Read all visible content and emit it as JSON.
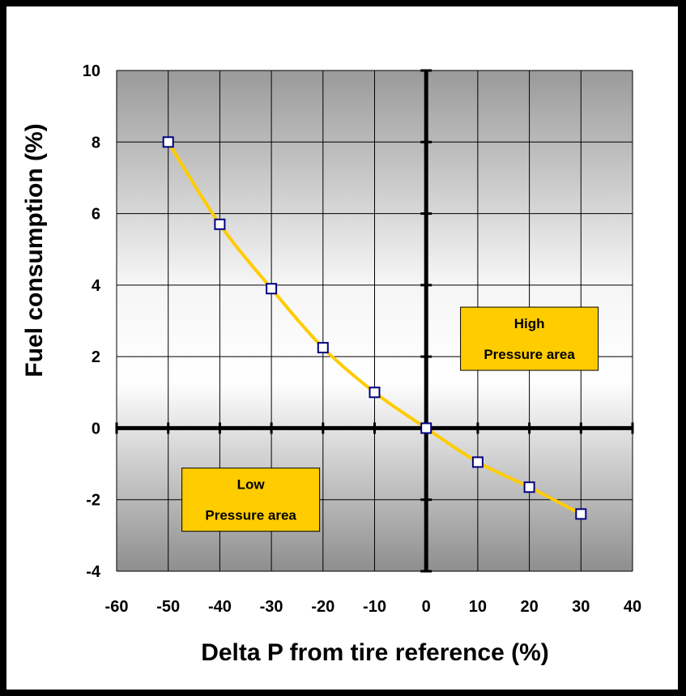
{
  "chart_data": {
    "type": "line",
    "xlabel": "Delta P from tire reference (%)",
    "ylabel": "Fuel consumption (%)",
    "xlim": [
      -60,
      40
    ],
    "ylim": [
      -4,
      10
    ],
    "x_ticks": [
      -60,
      -50,
      -40,
      -30,
      -20,
      -10,
      0,
      10,
      20,
      30,
      40
    ],
    "y_ticks": [
      -4,
      -2,
      0,
      2,
      4,
      6,
      8,
      10
    ],
    "grid": true,
    "legend": "none",
    "series": [
      {
        "x": [
          -50,
          -40,
          -30,
          -20,
          -10,
          0,
          10,
          20,
          30
        ],
        "y": [
          8.0,
          5.7,
          3.9,
          2.25,
          1.0,
          0.0,
          -0.95,
          -1.65,
          -2.4
        ],
        "line_color": "#ffcc00",
        "marker": "hollow-square",
        "marker_color": "#000080"
      }
    ],
    "annotations": [
      {
        "lines": [
          "High",
          "Pressure area"
        ],
        "x": 20,
        "y": 2.5
      },
      {
        "lines": [
          "Low",
          "Pressure area"
        ],
        "x": -34,
        "y": -2.0
      }
    ]
  },
  "colors": {
    "background": "#000000",
    "plot_top": "#9a9a9a",
    "plot_mid": "#ffffff",
    "line": "#ffcc00",
    "marker_border": "#000080",
    "annotation_fill": "#ffcc00"
  }
}
